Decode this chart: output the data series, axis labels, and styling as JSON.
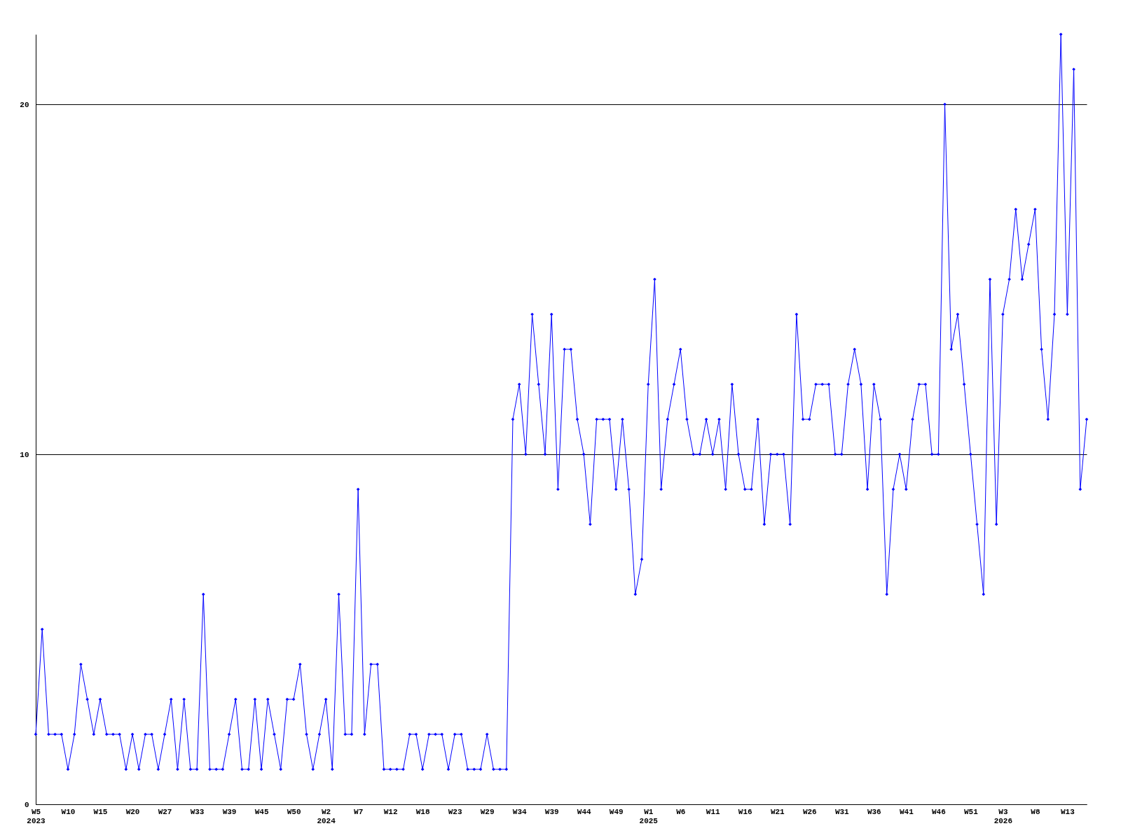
{
  "chart_data": {
    "type": "line",
    "categories": [
      "W5\n2023",
      null,
      null,
      null,
      null,
      "W10",
      null,
      null,
      null,
      null,
      "W15",
      null,
      null,
      null,
      null,
      "W20",
      null,
      null,
      null,
      null,
      "W27",
      null,
      null,
      null,
      null,
      "W33",
      null,
      null,
      null,
      null,
      "W39",
      null,
      null,
      null,
      null,
      "W45",
      null,
      null,
      null,
      null,
      "W50",
      null,
      null,
      null,
      null,
      "W2\n2024",
      null,
      null,
      null,
      null,
      "W7",
      null,
      null,
      null,
      null,
      "W12",
      null,
      null,
      null,
      null,
      "W18",
      null,
      null,
      null,
      null,
      "W23",
      null,
      null,
      null,
      null,
      "W29",
      null,
      null,
      null,
      null,
      "W34",
      null,
      null,
      null,
      null,
      "W39",
      null,
      null,
      null,
      null,
      "W44",
      null,
      null,
      null,
      null,
      "W49",
      null,
      null,
      null,
      null,
      "W1\n2025",
      null,
      null,
      null,
      null,
      "W6",
      null,
      null,
      null,
      null,
      "W11",
      null,
      null,
      null,
      null,
      "W16",
      null,
      null,
      null,
      null,
      "W21",
      null,
      null,
      null,
      null,
      "W26",
      null,
      null,
      null,
      null,
      "W31",
      null,
      null,
      null,
      null,
      "W36",
      null,
      null,
      null,
      null,
      "W41",
      null,
      null,
      null,
      null,
      "W46",
      null,
      null,
      null,
      null,
      "W51",
      null,
      null,
      null,
      null,
      "W3\n2026",
      null,
      null,
      null,
      null,
      "W8",
      null,
      null,
      null,
      null,
      "W13",
      null,
      null,
      null
    ],
    "series": [
      {
        "color": "#0000ff",
        "values": [
          2,
          5,
          2,
          2,
          2,
          1,
          2,
          4,
          3,
          2,
          3,
          2,
          2,
          2,
          1,
          2,
          1,
          2,
          2,
          1,
          2,
          3,
          1,
          3,
          1,
          1,
          6,
          1,
          1,
          1,
          2,
          3,
          1,
          1,
          3,
          1,
          3,
          2,
          1,
          3,
          3,
          4,
          2,
          1,
          2,
          3,
          1,
          6,
          2,
          2,
          9,
          2,
          4,
          4,
          1,
          1,
          1,
          1,
          2,
          2,
          1,
          2,
          2,
          2,
          1,
          2,
          2,
          1,
          1,
          1,
          2,
          1,
          1,
          1,
          11,
          12,
          10,
          14,
          12,
          10,
          14,
          9,
          13,
          13,
          11,
          10,
          8,
          11,
          11,
          11,
          9,
          11,
          9,
          6,
          7,
          12,
          15,
          9,
          11,
          12,
          13,
          11,
          10,
          10,
          11,
          10,
          11,
          9,
          12,
          10,
          9,
          9,
          11,
          8,
          10,
          10,
          10,
          8,
          14,
          11,
          11,
          12,
          12,
          12,
          10,
          10,
          12,
          13,
          12,
          9,
          12,
          11,
          6,
          9,
          10,
          9,
          11,
          12,
          12,
          10,
          10,
          20,
          13,
          14,
          12,
          10,
          8,
          6,
          15,
          8,
          14,
          15,
          17,
          15,
          16,
          17,
          13,
          11,
          14,
          22,
          14,
          21,
          9,
          11
        ]
      }
    ],
    "ylim": [
      0,
      22
    ],
    "yticks": [
      0,
      10,
      20
    ],
    "grid": "y",
    "marker": "diamond",
    "line_style": "solid"
  }
}
